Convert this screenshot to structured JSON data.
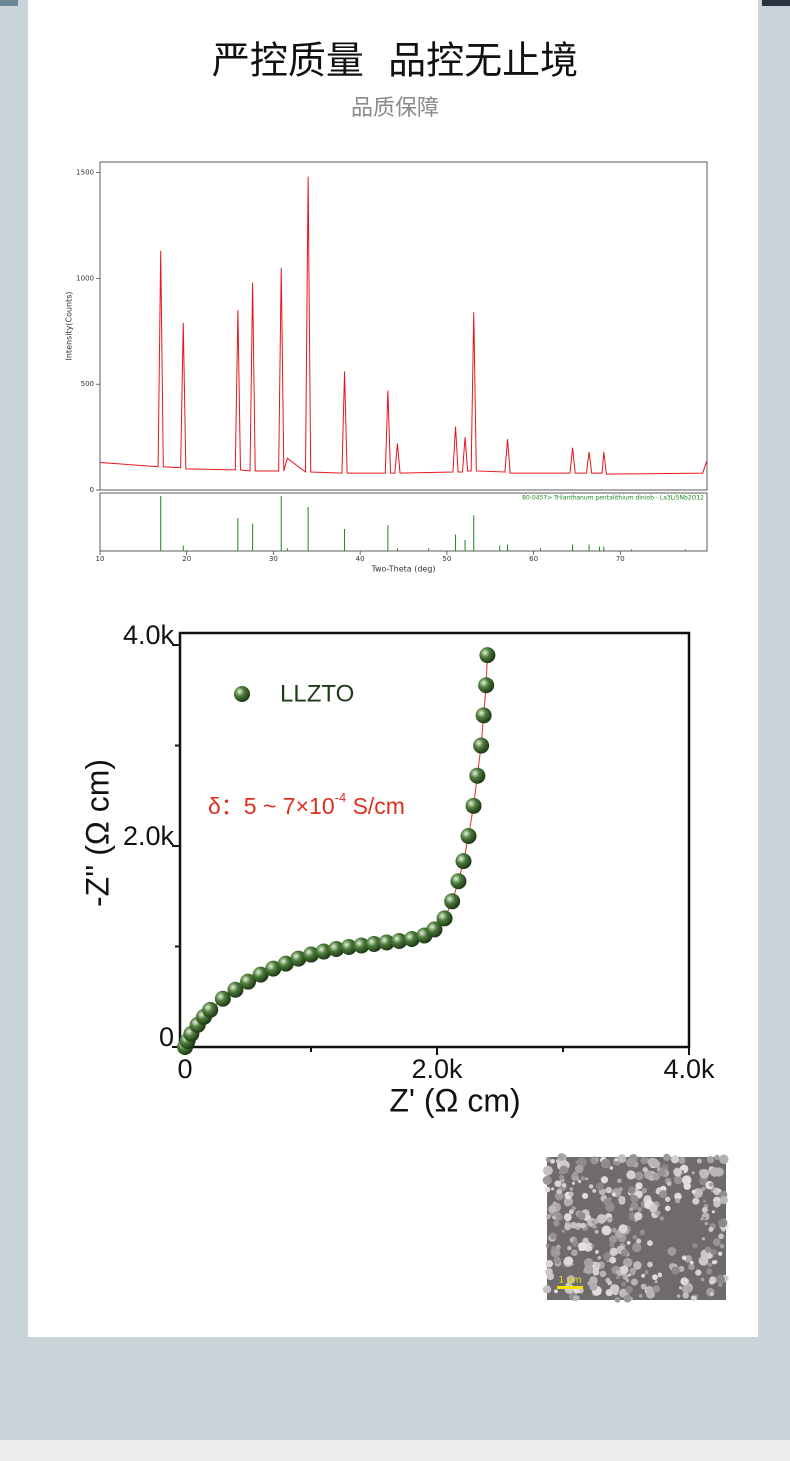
{
  "header": {
    "title": "严控质量  品控无止境",
    "subtitle": "品质保障"
  },
  "chart_data": [
    {
      "type": "line",
      "ylabel": "Intensity(Counts)",
      "xlabel": "Two-Theta (deg)",
      "xlim": [
        10,
        80
      ],
      "ylim": [
        0,
        1550
      ],
      "xticks": [
        10,
        20,
        30,
        40,
        50,
        60,
        70
      ],
      "yticks": [
        0,
        500,
        1000,
        1500
      ],
      "color": "#e8141c",
      "x": [
        10,
        16.7,
        17.0,
        17.3,
        19.3,
        19.6,
        19.9,
        25.6,
        25.9,
        26.2,
        27.3,
        27.6,
        27.9,
        30.6,
        30.9,
        31.2,
        31.6,
        33.7,
        34.0,
        34.3,
        37.9,
        38.2,
        38.5,
        42.9,
        43.2,
        43.5,
        44.0,
        44.3,
        44.6,
        50.7,
        51.0,
        51.3,
        51.8,
        52.1,
        52.4,
        52.8,
        53.1,
        53.4,
        56.7,
        57.0,
        57.3,
        64.2,
        64.5,
        64.8,
        66.1,
        66.4,
        66.7,
        67.9,
        68.1,
        68.4,
        79.5,
        80
      ],
      "values": [
        130,
        110,
        1130,
        110,
        105,
        790,
        100,
        95,
        850,
        95,
        90,
        980,
        90,
        90,
        1050,
        90,
        150,
        85,
        1480,
        85,
        80,
        560,
        80,
        80,
        470,
        80,
        80,
        220,
        80,
        85,
        300,
        85,
        85,
        250,
        90,
        90,
        840,
        90,
        85,
        240,
        80,
        80,
        200,
        80,
        80,
        180,
        80,
        80,
        180,
        75,
        80,
        140
      ],
      "reference": {
        "name": "80-0457> Trilanthanum pentalithium diniob - La3Li5Nb2O12",
        "color": "#1a8a1a",
        "ylim": [
          0,
          100
        ],
        "x": [
          17.0,
          19.6,
          25.9,
          27.6,
          30.9,
          31.6,
          34.0,
          38.2,
          43.2,
          44.3,
          47.9,
          51.0,
          52.1,
          53.1,
          56.1,
          57.0,
          60.8,
          64.5,
          66.4,
          67.6,
          68.1,
          71.3,
          77.5
        ],
        "values": [
          100,
          10,
          60,
          50,
          100,
          5,
          80,
          40,
          47,
          5,
          5,
          30,
          20,
          65,
          10,
          12,
          5,
          12,
          12,
          8,
          8,
          3,
          3
        ]
      }
    },
    {
      "type": "scatter",
      "xlabel": "Z' (Ω cm)",
      "ylabel": "-Z'' (Ω cm)",
      "xlim": [
        -40,
        4000
      ],
      "ylim": [
        0,
        4120
      ],
      "xticks": [
        0,
        {
          "value": 2000,
          "label": "2.0k"
        },
        {
          "value": 4000,
          "label": "4.0k"
        }
      ],
      "xminor": [
        1000,
        3000
      ],
      "yticks": [
        0,
        {
          "value": 2000,
          "label": "2.0k"
        },
        {
          "value": 4000,
          "label": "4.0k"
        }
      ],
      "yminor": [
        1000,
        3000
      ],
      "series": [
        {
          "name": "LLZTO",
          "color": "#4d7c3a",
          "x": [
            0,
            20,
            50,
            100,
            150,
            200,
            300,
            400,
            500,
            600,
            700,
            800,
            900,
            1000,
            1100,
            1200,
            1300,
            1400,
            1500,
            1600,
            1700,
            1800,
            1900,
            1980,
            2060,
            2120,
            2170,
            2210,
            2250,
            2290,
            2320,
            2350,
            2370,
            2390,
            2400
          ],
          "values": [
            0,
            60,
            130,
            220,
            300,
            370,
            480,
            570,
            650,
            720,
            780,
            830,
            880,
            920,
            950,
            975,
            995,
            1010,
            1025,
            1040,
            1055,
            1075,
            1110,
            1170,
            1280,
            1450,
            1650,
            1850,
            2100,
            2400,
            2700,
            3000,
            3300,
            3600,
            3900
          ]
        }
      ],
      "fit_color": "#e03020",
      "annotation": [
        "δ：5 ~ 7×10",
        "-4",
        " S/cm"
      ],
      "annotation_color": "#e03020"
    }
  ],
  "image": {
    "scale_label": "1 μm"
  }
}
